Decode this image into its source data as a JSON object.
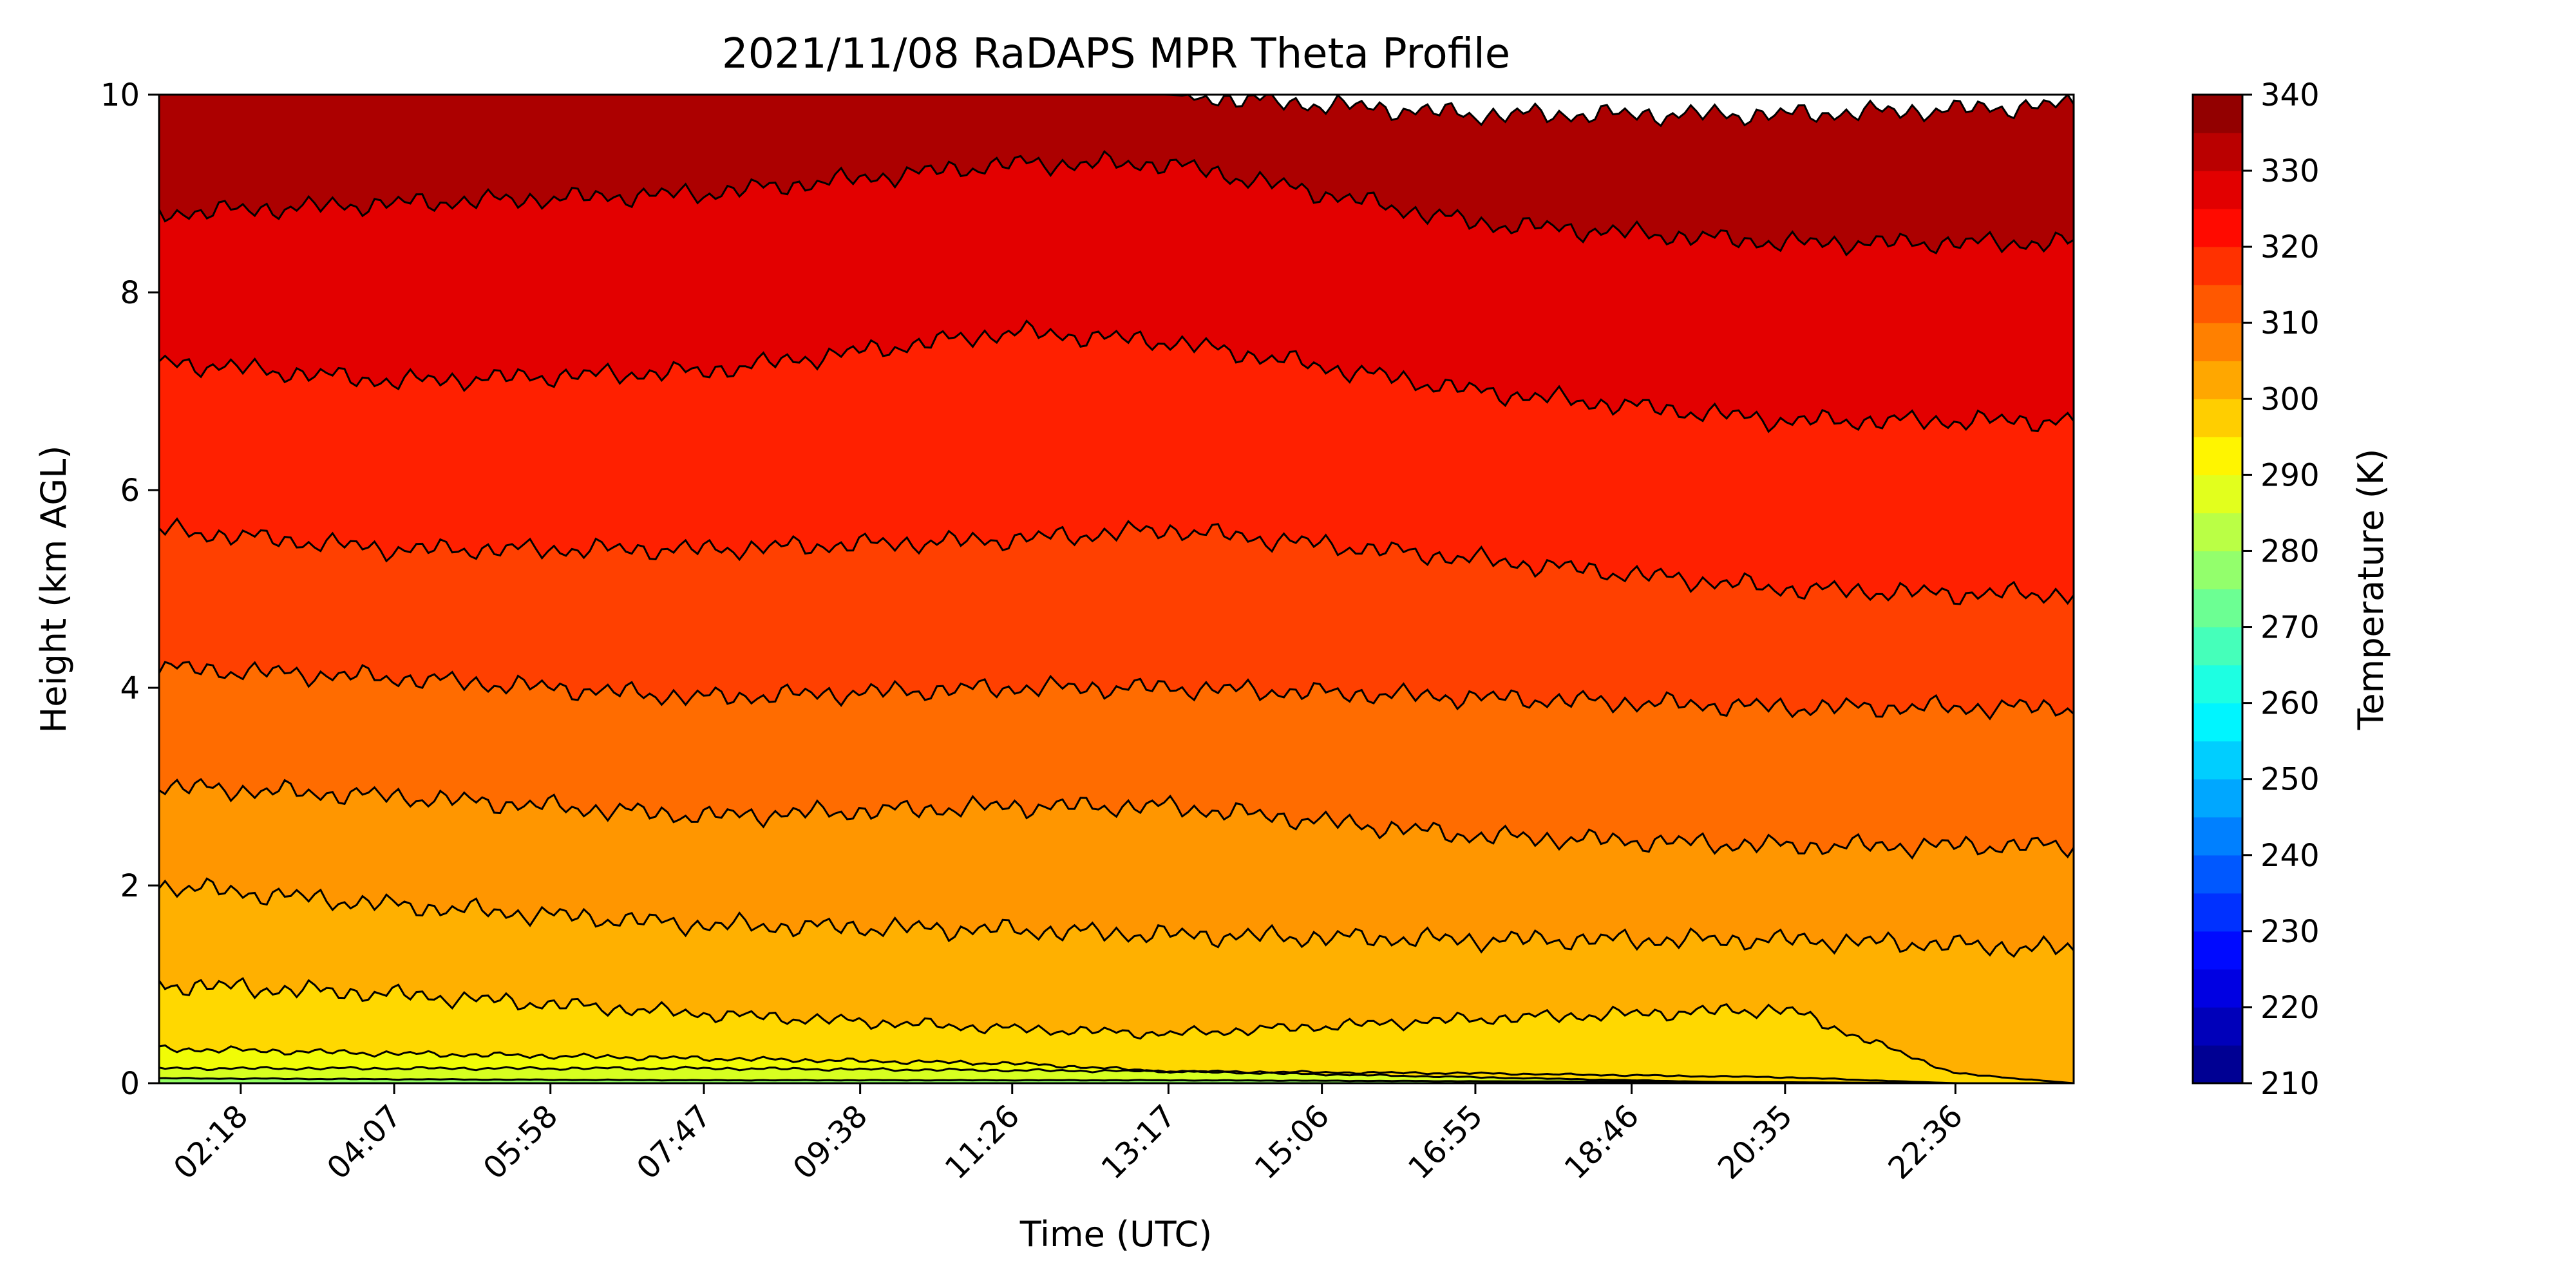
{
  "chart_data": {
    "type": "area",
    "title": "2021/11/08 RaDAPS MPR Theta Profile",
    "xlabel": "Time (UTC)",
    "ylabel": "Height (km AGL)",
    "x_ticks": [
      "02:18",
      "04:07",
      "05:58",
      "07:47",
      "09:38",
      "11:26",
      "13:17",
      "15:06",
      "16:55",
      "18:46",
      "20:35",
      "22:36"
    ],
    "xlim": [
      "01:20",
      "24:00"
    ],
    "ylim": [
      0,
      10
    ],
    "y_ticks": [
      0,
      2,
      4,
      6,
      8,
      10
    ],
    "colorbar": {
      "label": "Temperature (K)",
      "range": [
        210,
        340
      ],
      "step": 5,
      "ticks": [
        210,
        220,
        230,
        240,
        250,
        260,
        270,
        280,
        290,
        300,
        310,
        320,
        330,
        340
      ],
      "colormap": "jet"
    },
    "isentropes": [
      {
        "theta_range": [
          285,
          290
        ],
        "color": "#94ff63",
        "height_km": [
          0.05,
          0.04,
          0.03,
          0.03,
          0.03,
          0.02,
          0.01,
          0.0,
          0.0
        ]
      },
      {
        "theta_range": [
          290,
          295
        ],
        "color": "#d7ff20",
        "height_km": [
          0.15,
          0.15,
          0.15,
          0.13,
          0.12,
          0.1,
          0.06,
          0.0,
          0.0
        ]
      },
      {
        "theta_range": [
          295,
          300
        ],
        "color": "#f1fc06",
        "height_km": [
          0.35,
          0.3,
          0.25,
          0.2,
          0.12,
          0.06,
          0.0,
          0.0,
          0.0
        ]
      },
      {
        "theta_range": [
          300,
          305
        ],
        "color": "#ffd800",
        "height_km": [
          1.0,
          0.9,
          0.7,
          0.55,
          0.5,
          0.65,
          0.75,
          0.1,
          0.0
        ]
      },
      {
        "theta_range": [
          305,
          310
        ],
        "color": "#ffb000",
        "height_km": [
          2.0,
          1.8,
          1.6,
          1.55,
          1.5,
          1.45,
          1.45,
          1.4,
          1.35
        ]
      },
      {
        "theta_range": [
          310,
          315
        ],
        "color": "#ff9600",
        "height_km": [
          3.0,
          2.9,
          2.7,
          2.8,
          2.8,
          2.5,
          2.4,
          2.4,
          2.4
        ]
      },
      {
        "theta_range": [
          315,
          320
        ],
        "color": "#ff6c00",
        "height_km": [
          4.2,
          4.1,
          3.9,
          4.0,
          4.0,
          3.9,
          3.8,
          3.8,
          3.8
        ]
      },
      {
        "theta_range": [
          320,
          325
        ],
        "color": "#ff4000",
        "height_km": [
          5.6,
          5.4,
          5.4,
          5.5,
          5.6,
          5.3,
          5.0,
          4.95,
          4.95
        ]
      },
      {
        "theta_range": [
          325,
          330
        ],
        "color": "#ff2000",
        "height_km": [
          7.3,
          7.1,
          7.2,
          7.6,
          7.5,
          7.0,
          6.7,
          6.7,
          6.7
        ]
      },
      {
        "theta_range": [
          330,
          335
        ],
        "color": "#e30000",
        "height_km": [
          8.8,
          8.9,
          9.0,
          9.3,
          9.3,
          8.7,
          8.5,
          8.5,
          8.5
        ]
      },
      {
        "theta_range": [
          335,
          340
        ],
        "color": "#ac0000",
        "height_km": [
          10.0,
          10.0,
          10.0,
          10.0,
          10.0,
          9.8,
          9.8,
          9.85,
          9.9
        ]
      }
    ],
    "isentrope_times": [
      "01:20",
      "04:07",
      "07:47",
      "11:26",
      "13:17",
      "16:55",
      "20:35",
      "22:36",
      "24:00"
    ]
  }
}
